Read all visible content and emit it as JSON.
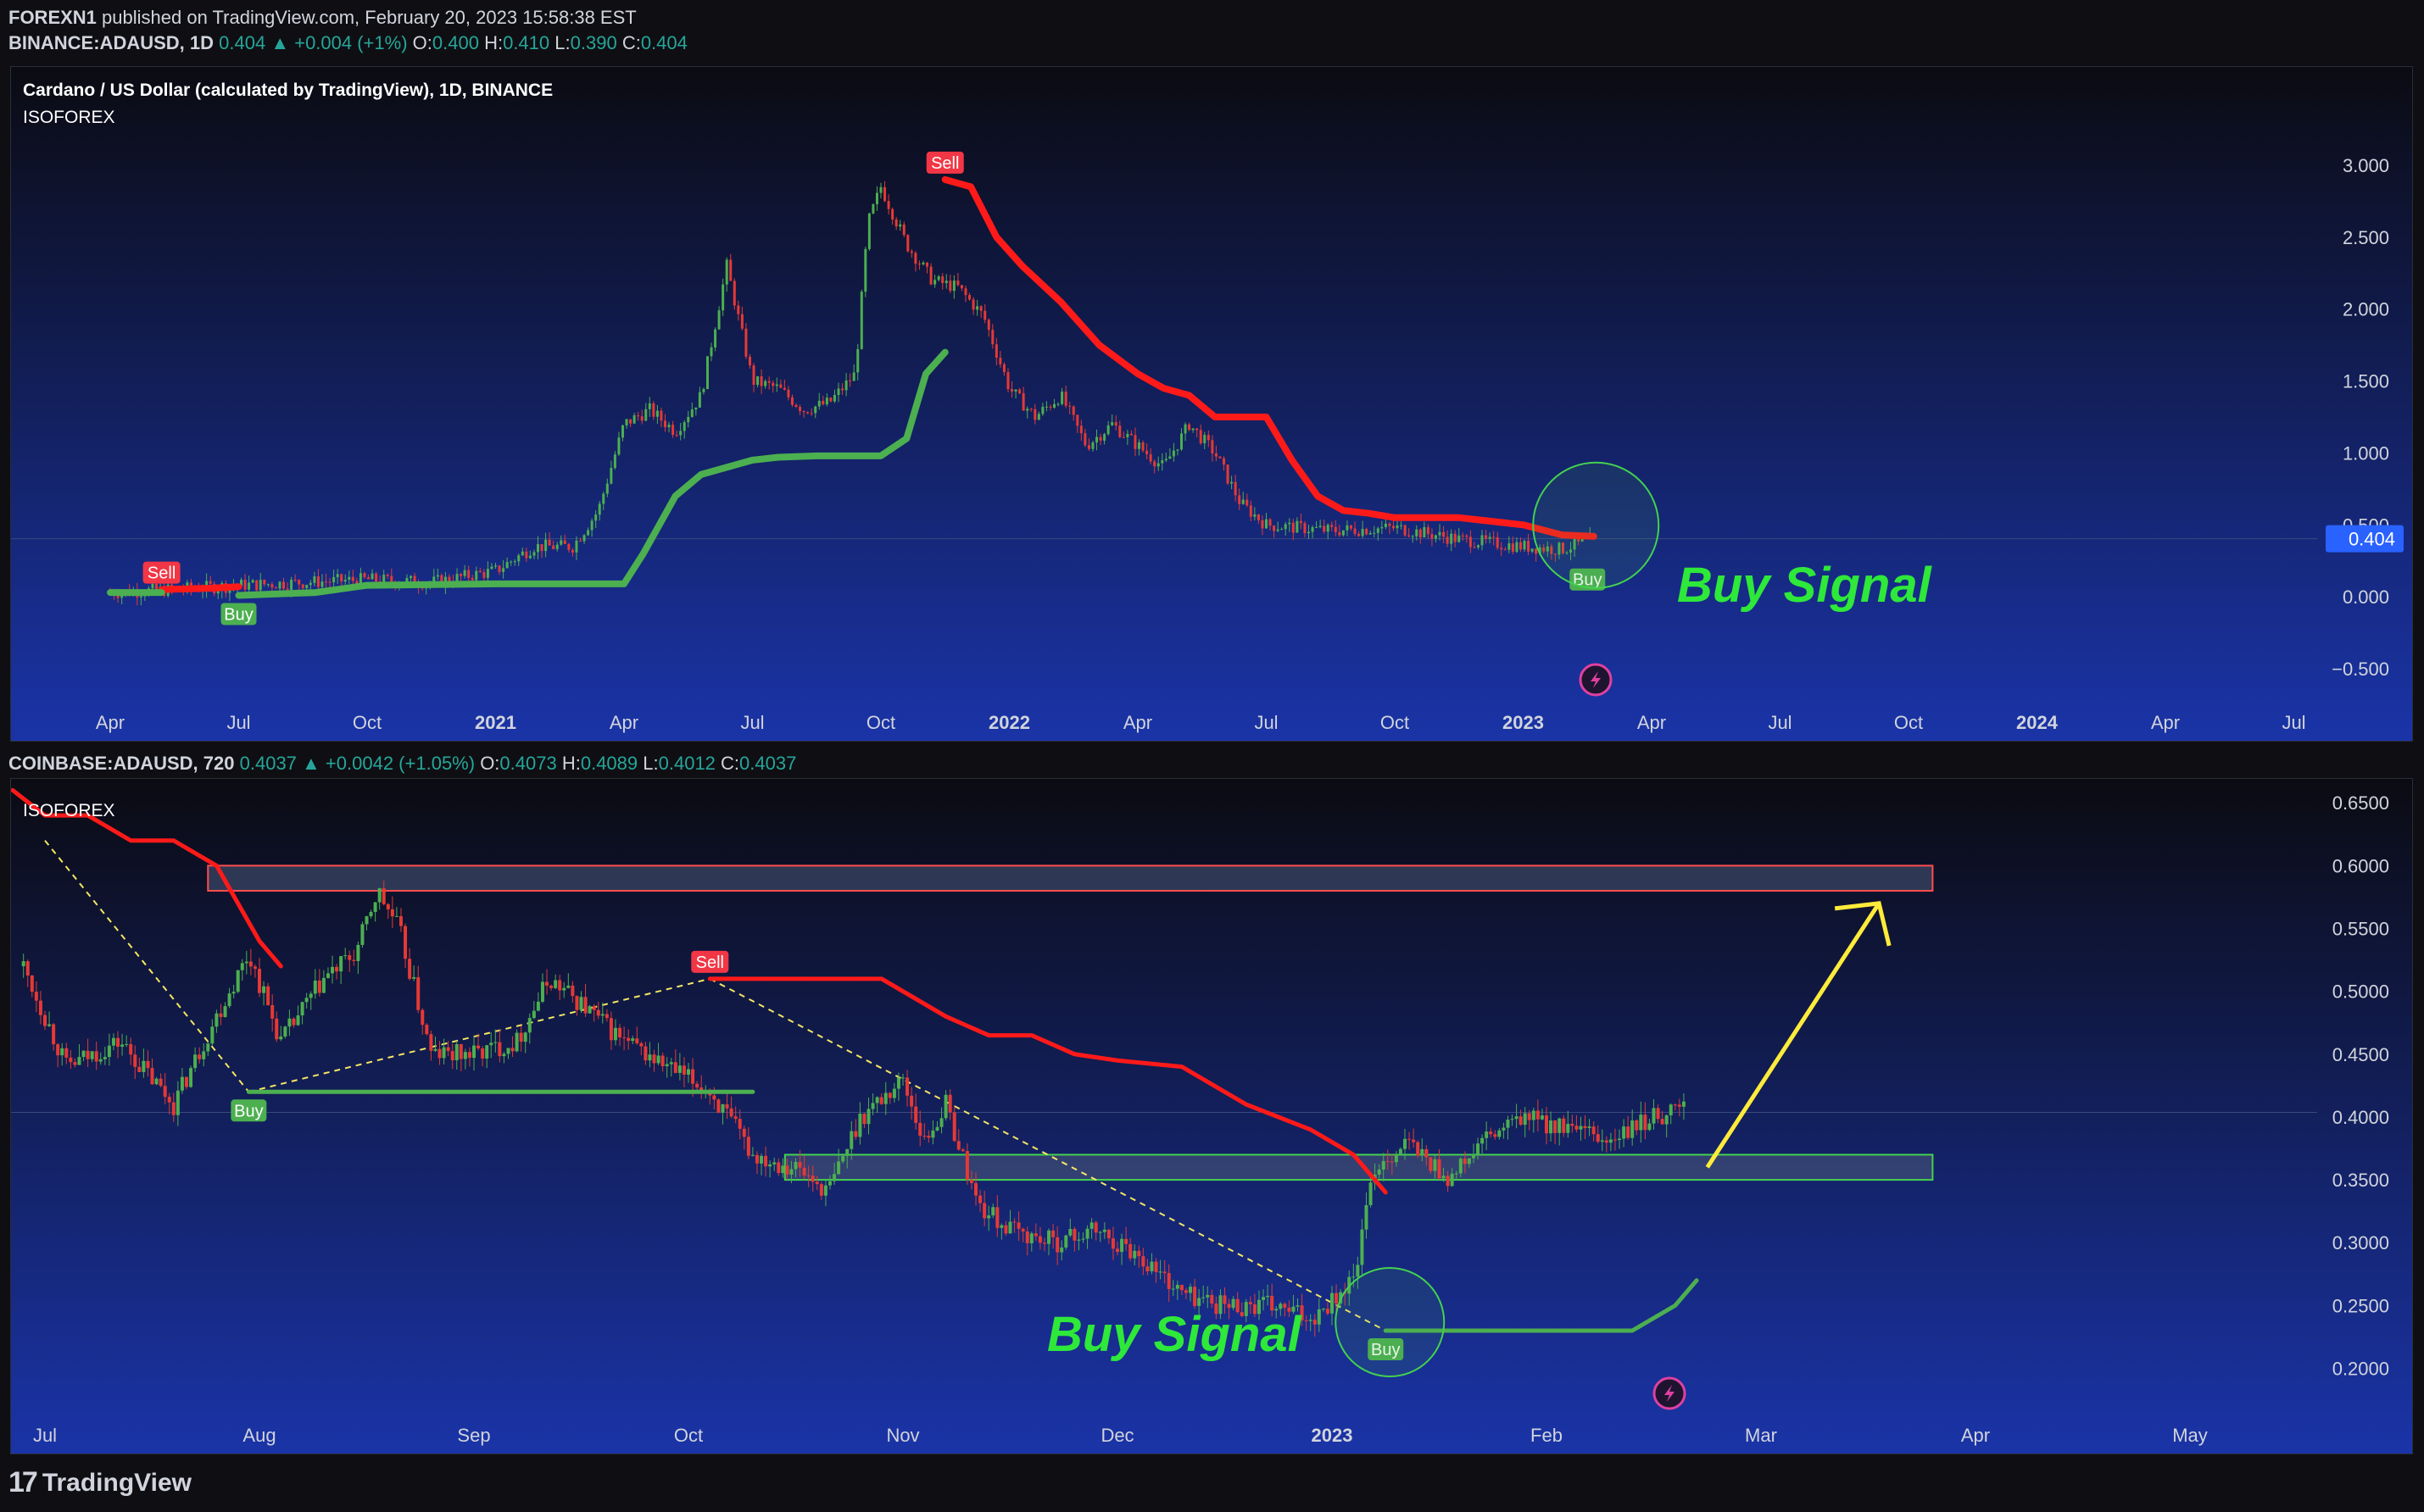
{
  "header": {
    "publisher": "FOREXN1",
    "published_text": "published on TradingView.com, February 20, 2023 15:58:38 EST",
    "symbol": "BINANCE:ADAUSD, 1D",
    "last": "0.404",
    "change": "▲ +0.004 (+1%)",
    "o_label": "O:",
    "o": "0.400",
    "h_label": "H:",
    "h": "0.410",
    "l_label": "L:",
    "l": "0.390",
    "c_label": "C:",
    "c": "0.404"
  },
  "top_panel": {
    "title": "Cardano / US Dollar (calculated by TradingView), 1D, BINANCE",
    "indicator": "ISOFOREX",
    "price_tag": "0.404",
    "annotation": "Buy Signal"
  },
  "bottom_header": {
    "symbol": "COINBASE:ADAUSD, 720",
    "last": "0.4037",
    "change": "▲ +0.0042 (+1.05%)",
    "o_label": "O:",
    "o": "0.4073",
    "h_label": "H:",
    "h": "0.4089",
    "l_label": "L:",
    "l": "0.4012",
    "c_label": "C:",
    "c": "0.4037"
  },
  "bottom_panel": {
    "indicator": "ISOFOREX",
    "annotation": "Buy Signal"
  },
  "footer": {
    "logo_text": "17",
    "brand": "TradingView"
  },
  "colors": {
    "bg_top": "#0b0b12",
    "bg_bottom": "#1a34a8",
    "sell_line": "#ff1a1a",
    "buy_line": "#4caf50",
    "candle_up": "#4caf50",
    "candle_down": "#e53935",
    "annotation": "#2ee83a",
    "arrow": "#ffeb3b",
    "zone_fill": "#4a5a7a"
  },
  "chart_data": [
    {
      "type": "line",
      "title": "Cardano / US Dollar (calculated by TradingView), 1D, BINANCE",
      "y_ticks": [
        "3.000",
        "2.500",
        "2.000",
        "1.500",
        "1.000",
        "0.500",
        "0.000",
        "−0.500"
      ],
      "y_tick_values": [
        3.0,
        2.5,
        2.0,
        1.5,
        1.0,
        0.5,
        0.0,
        -0.5
      ],
      "ylim": [
        -0.6,
        3.2
      ],
      "x_ticks": [
        "Apr",
        "Jul",
        "Oct",
        "2021",
        "Apr",
        "Jul",
        "Oct",
        "2022",
        "Apr",
        "Jul",
        "Oct",
        "2023",
        "Apr",
        "Jul",
        "Oct",
        "2024",
        "Apr",
        "Jul"
      ],
      "x_tick_index": [
        0,
        1,
        2,
        3,
        4,
        5,
        6,
        7,
        8,
        9,
        10,
        11,
        12,
        13,
        14,
        15,
        16,
        17
      ],
      "bold_ticks": [
        "2021",
        "2022",
        "2023",
        "2024"
      ],
      "price_series": {
        "name": "ADAUSD",
        "x": [
          0,
          0.5,
          1,
          1.5,
          2,
          2.5,
          3,
          3.3,
          3.6,
          3.8,
          4.0,
          4.2,
          4.4,
          4.6,
          4.8,
          5.0,
          5.2,
          5.4,
          5.6,
          5.8,
          5.9,
          6.0,
          6.2,
          6.4,
          6.6,
          6.8,
          7.0,
          7.2,
          7.4,
          7.6,
          7.8,
          8.0,
          8.2,
          8.4,
          8.6,
          8.8,
          9.0,
          9.5,
          10.0,
          10.5,
          11.0,
          11.3,
          11.55
        ],
        "y": [
          0.03,
          0.05,
          0.08,
          0.1,
          0.12,
          0.1,
          0.18,
          0.35,
          0.35,
          0.6,
          1.2,
          1.3,
          1.15,
          1.4,
          2.3,
          1.5,
          1.45,
          1.3,
          1.35,
          1.55,
          2.6,
          2.85,
          2.45,
          2.2,
          2.15,
          1.95,
          1.45,
          1.25,
          1.4,
          1.05,
          1.2,
          1.05,
          0.9,
          1.2,
          1.0,
          0.65,
          0.5,
          0.46,
          0.48,
          0.4,
          0.35,
          0.33,
          0.4
        ]
      },
      "sell_trail": {
        "name": "Sell",
        "segments": [
          {
            "x": [
              0.4,
              0.8,
              1.0
            ],
            "y": [
              0.05,
              0.06,
              0.07
            ]
          },
          {
            "x": [
              6.5,
              6.7,
              6.9,
              7.1,
              7.4,
              7.7,
              8.0,
              8.2,
              8.4,
              8.6,
              8.8,
              9.0,
              9.2,
              9.4,
              9.6,
              9.8,
              10.0,
              10.5,
              11.0,
              11.3,
              11.55
            ],
            "y": [
              2.9,
              2.85,
              2.5,
              2.3,
              2.05,
              1.75,
              1.55,
              1.45,
              1.4,
              1.25,
              1.25,
              1.25,
              0.95,
              0.7,
              0.6,
              0.58,
              0.55,
              0.55,
              0.5,
              0.43,
              0.42
            ]
          }
        ]
      },
      "buy_trail": {
        "name": "Buy",
        "segments": [
          {
            "x": [
              0,
              0.4
            ],
            "y": [
              0.03,
              0.03
            ]
          },
          {
            "x": [
              1.0,
              1.3,
              1.6,
              2.0,
              3.0,
              4.0,
              4.15,
              4.4,
              4.6,
              4.8,
              5.0,
              5.2,
              5.5,
              6.0,
              6.2,
              6.35,
              6.5
            ],
            "y": [
              0.01,
              0.02,
              0.03,
              0.08,
              0.09,
              0.09,
              0.3,
              0.7,
              0.85,
              0.9,
              0.95,
              0.97,
              0.98,
              0.98,
              1.1,
              1.55,
              1.7
            ]
          }
        ]
      },
      "signals": [
        {
          "label": "Sell",
          "x": 0.4,
          "y": 0.05
        },
        {
          "label": "Buy",
          "x": 1.0,
          "y": 0.01
        },
        {
          "label": "Sell",
          "x": 6.5,
          "y": 2.9
        },
        {
          "label": "Buy",
          "x": 11.5,
          "y": 0.25
        }
      ],
      "current_price": 0.404
    },
    {
      "type": "line",
      "title": "COINBASE:ADAUSD, 720",
      "y_ticks": [
        "0.6500",
        "0.6000",
        "0.5500",
        "0.5000",
        "0.4500",
        "0.4000",
        "0.3500",
        "0.3000",
        "0.2500",
        "0.2000"
      ],
      "y_tick_values": [
        0.65,
        0.6,
        0.55,
        0.5,
        0.45,
        0.4,
        0.35,
        0.3,
        0.25,
        0.2
      ],
      "ylim": [
        0.17,
        0.665
      ],
      "x_ticks": [
        "Jul",
        "Aug",
        "Sep",
        "Oct",
        "Nov",
        "Dec",
        "2023",
        "Feb",
        "Mar",
        "Apr",
        "May"
      ],
      "x_tick_index": [
        0,
        1,
        2,
        3,
        4,
        5,
        6,
        7,
        8,
        9,
        10
      ],
      "bold_ticks": [
        "2023"
      ],
      "price_series": {
        "name": "ADAUSD",
        "x": [
          -0.1,
          0.1,
          0.35,
          0.6,
          0.8,
          0.95,
          1.1,
          1.3,
          1.45,
          1.55,
          1.65,
          1.8,
          2.0,
          2.2,
          2.35,
          2.5,
          2.7,
          2.9,
          3.1,
          3.3,
          3.5,
          3.65,
          3.8,
          4.0,
          4.1,
          4.2,
          4.35,
          4.5,
          4.7,
          4.9,
          5.1,
          5.3,
          5.5,
          5.7,
          5.9,
          6.1,
          6.2,
          6.35,
          6.55,
          6.7,
          6.9,
          7.1,
          7.3,
          7.5,
          7.65
        ],
        "y": [
          0.52,
          0.44,
          0.46,
          0.41,
          0.48,
          0.53,
          0.46,
          0.51,
          0.53,
          0.58,
          0.55,
          0.45,
          0.45,
          0.46,
          0.51,
          0.49,
          0.46,
          0.44,
          0.42,
          0.37,
          0.36,
          0.34,
          0.4,
          0.43,
          0.38,
          0.41,
          0.33,
          0.31,
          0.3,
          0.31,
          0.29,
          0.26,
          0.25,
          0.25,
          0.24,
          0.27,
          0.36,
          0.38,
          0.35,
          0.38,
          0.4,
          0.39,
          0.38,
          0.4,
          0.41
        ]
      },
      "sell_trail": {
        "name": "Sell",
        "segments": [
          {
            "x": [
              -0.15,
              0.0,
              0.2,
              0.4,
              0.6,
              0.8,
              0.9,
              1.0,
              1.1
            ],
            "y": [
              0.66,
              0.64,
              0.64,
              0.62,
              0.62,
              0.6,
              0.57,
              0.54,
              0.52
            ]
          },
          {
            "x": [
              3.1,
              3.3,
              3.6,
              3.9,
              4.2,
              4.4,
              4.6,
              4.8,
              5.0,
              5.3,
              5.6,
              5.9,
              6.1,
              6.25
            ],
            "y": [
              0.51,
              0.51,
              0.51,
              0.51,
              0.48,
              0.465,
              0.465,
              0.45,
              0.445,
              0.44,
              0.41,
              0.39,
              0.37,
              0.34
            ]
          }
        ]
      },
      "buy_trail": {
        "name": "Buy",
        "segments": [
          {
            "x": [
              0.95,
              1.2,
              2.0,
              2.5,
              3.0,
              3.3
            ],
            "y": [
              0.42,
              0.42,
              0.42,
              0.42,
              0.42,
              0.42
            ]
          },
          {
            "x": [
              6.25,
              6.5,
              6.9,
              7.2,
              7.4,
              7.6,
              7.7
            ],
            "y": [
              0.23,
              0.23,
              0.23,
              0.23,
              0.23,
              0.25,
              0.27
            ]
          }
        ]
      },
      "signals": [
        {
          "label": "Buy",
          "x": 0.95,
          "y": 0.42
        },
        {
          "label": "Sell",
          "x": 3.1,
          "y": 0.51
        },
        {
          "label": "Buy",
          "x": 6.25,
          "y": 0.23
        }
      ],
      "resistance_zone": [
        0.58,
        0.6
      ],
      "support_zone": [
        0.35,
        0.37
      ],
      "trendlines": [
        {
          "x": [
            0.0,
            0.95
          ],
          "y": [
            0.62,
            0.42
          ]
        },
        {
          "x": [
            0.95,
            3.1
          ],
          "y": [
            0.42,
            0.51
          ]
        },
        {
          "x": [
            3.1,
            6.25
          ],
          "y": [
            0.51,
            0.23
          ]
        }
      ],
      "arrow": {
        "x": [
          7.75,
          8.55
        ],
        "y": [
          0.36,
          0.57
        ]
      }
    }
  ]
}
